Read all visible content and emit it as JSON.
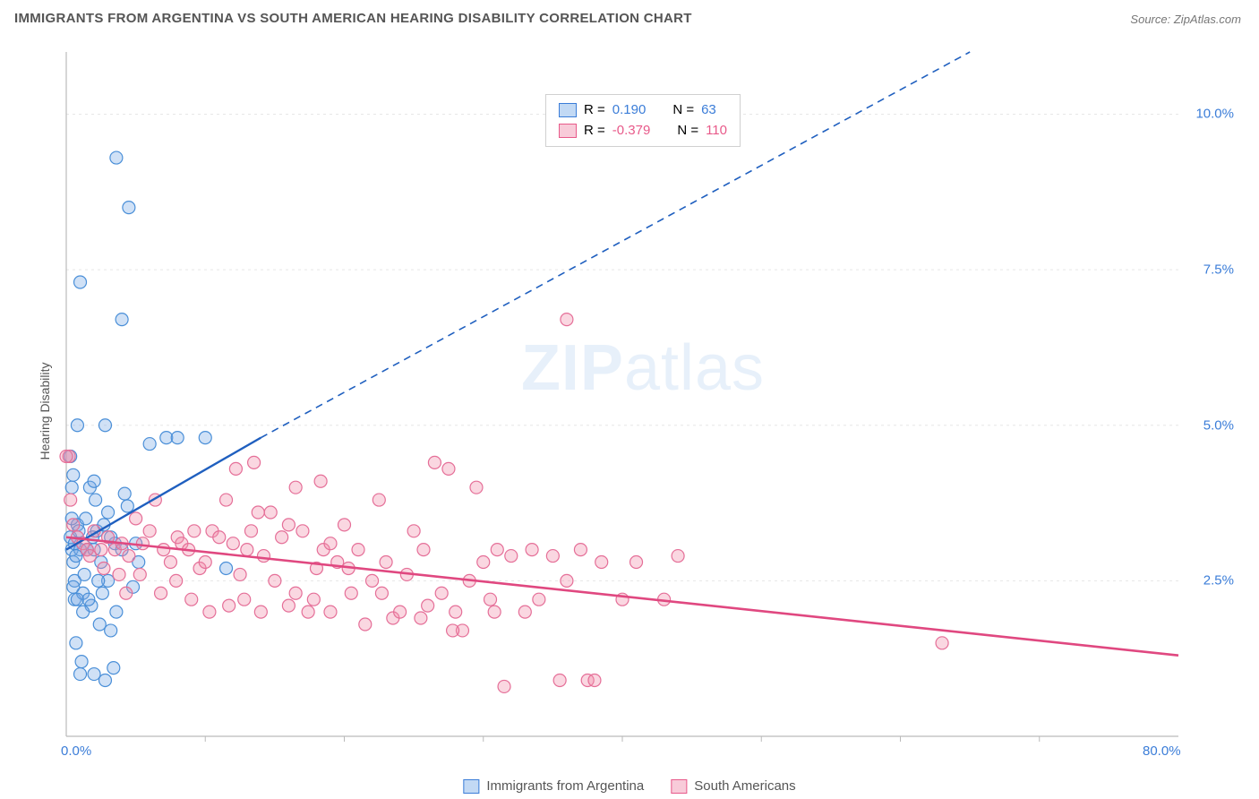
{
  "title": "IMMIGRANTS FROM ARGENTINA VS SOUTH AMERICAN HEARING DISABILITY CORRELATION CHART",
  "source_label": "Source:",
  "source_name": "ZipAtlas.com",
  "watermark_bold": "ZIP",
  "watermark_rest": "atlas",
  "chart": {
    "type": "scatter",
    "ylabel": "Hearing Disability",
    "xlim": [
      0,
      80
    ],
    "ylim": [
      0,
      11
    ],
    "yticks": [
      {
        "v": 2.5,
        "label": "2.5%"
      },
      {
        "v": 5.0,
        "label": "5.0%"
      },
      {
        "v": 7.5,
        "label": "7.5%"
      },
      {
        "v": 10.0,
        "label": "10.0%"
      }
    ],
    "xticks": [
      {
        "v": 0,
        "label": "0.0%"
      },
      {
        "v": 80,
        "label": "80.0%"
      }
    ],
    "xminor": [
      10,
      20,
      30,
      40,
      50,
      60,
      70
    ],
    "background_color": "#ffffff",
    "grid_color": "#e6e6e6",
    "axis_color": "#bababa",
    "marker_radius": 7,
    "marker_stroke_width": 1.2,
    "series": [
      {
        "name": "Immigrants from Argentina",
        "color_fill": "rgba(120,170,230,0.35)",
        "color_stroke": "#4a8fd8",
        "R": "0.190",
        "N": "63",
        "trend": {
          "x1": 0,
          "y1": 3.0,
          "x2_solid": 14,
          "y2_solid": 4.8,
          "x2_dash": 65,
          "y2_dash": 11.0,
          "color": "#1f5fbf",
          "width": 2.4
        },
        "points": [
          [
            0.3,
            3.2
          ],
          [
            0.4,
            3.0
          ],
          [
            0.6,
            3.1
          ],
          [
            0.5,
            2.8
          ],
          [
            0.8,
            3.4
          ],
          [
            0.4,
            3.5
          ],
          [
            0.6,
            2.5
          ],
          [
            1.0,
            3.0
          ],
          [
            0.9,
            3.3
          ],
          [
            0.7,
            2.9
          ],
          [
            0.3,
            4.5
          ],
          [
            0.5,
            4.2
          ],
          [
            0.6,
            2.2
          ],
          [
            1.2,
            2.3
          ],
          [
            1.5,
            3.0
          ],
          [
            1.3,
            2.6
          ],
          [
            1.8,
            2.1
          ],
          [
            1.4,
            3.5
          ],
          [
            2.0,
            3.0
          ],
          [
            2.2,
            3.3
          ],
          [
            2.5,
            2.8
          ],
          [
            2.6,
            2.3
          ],
          [
            3.0,
            2.5
          ],
          [
            3.5,
            3.1
          ],
          [
            3.2,
            3.2
          ],
          [
            4.0,
            3.0
          ],
          [
            3.6,
            2.0
          ],
          [
            1.7,
            4.0
          ],
          [
            2.0,
            4.1
          ],
          [
            0.8,
            5.0
          ],
          [
            2.8,
            5.0
          ],
          [
            4.2,
            3.9
          ],
          [
            5.0,
            3.1
          ],
          [
            5.2,
            2.8
          ],
          [
            6.0,
            4.7
          ],
          [
            7.2,
            4.8
          ],
          [
            8.0,
            4.8
          ],
          [
            10.0,
            4.8
          ],
          [
            11.5,
            2.7
          ],
          [
            1.0,
            7.3
          ],
          [
            4.0,
            6.7
          ],
          [
            4.5,
            8.5
          ],
          [
            3.6,
            9.3
          ],
          [
            1.2,
            2.0
          ],
          [
            2.4,
            1.8
          ],
          [
            3.2,
            1.7
          ],
          [
            0.7,
            1.5
          ],
          [
            1.1,
            1.2
          ],
          [
            3.4,
            1.1
          ],
          [
            1.0,
            1.0
          ],
          [
            2.0,
            1.0
          ],
          [
            2.8,
            0.9
          ],
          [
            0.5,
            2.4
          ],
          [
            0.8,
            2.2
          ],
          [
            1.6,
            2.2
          ],
          [
            2.3,
            2.5
          ],
          [
            4.8,
            2.4
          ],
          [
            3.0,
            3.6
          ],
          [
            4.4,
            3.7
          ],
          [
            2.1,
            3.8
          ],
          [
            0.4,
            4.0
          ],
          [
            1.9,
            3.2
          ],
          [
            2.7,
            3.4
          ]
        ]
      },
      {
        "name": "South Americans",
        "color_fill": "rgba(240,140,170,0.35)",
        "color_stroke": "#e56f98",
        "R": "-0.379",
        "N": "110",
        "trend": {
          "x1": 0,
          "y1": 3.2,
          "x2_solid": 80,
          "y2_solid": 1.3,
          "color": "#e04880",
          "width": 2.6
        },
        "points": [
          [
            0.2,
            4.5
          ],
          [
            0.0,
            4.5
          ],
          [
            0.3,
            3.8
          ],
          [
            0.5,
            3.4
          ],
          [
            0.8,
            3.2
          ],
          [
            1.2,
            3.1
          ],
          [
            1.5,
            3.0
          ],
          [
            2.0,
            3.3
          ],
          [
            2.5,
            3.0
          ],
          [
            3.0,
            3.2
          ],
          [
            3.5,
            3.0
          ],
          [
            4.0,
            3.1
          ],
          [
            4.5,
            2.9
          ],
          [
            5.0,
            3.5
          ],
          [
            5.5,
            3.1
          ],
          [
            6.0,
            3.3
          ],
          [
            6.4,
            3.8
          ],
          [
            7.0,
            3.0
          ],
          [
            7.5,
            2.8
          ],
          [
            8.0,
            3.2
          ],
          [
            8.3,
            3.1
          ],
          [
            8.8,
            3.0
          ],
          [
            9.2,
            3.3
          ],
          [
            9.6,
            2.7
          ],
          [
            10.0,
            2.8
          ],
          [
            10.5,
            3.3
          ],
          [
            11.0,
            3.2
          ],
          [
            11.5,
            3.8
          ],
          [
            12.0,
            3.1
          ],
          [
            12.5,
            2.6
          ],
          [
            13.0,
            3.0
          ],
          [
            13.3,
            3.3
          ],
          [
            13.8,
            3.6
          ],
          [
            14.2,
            2.9
          ],
          [
            14.7,
            3.6
          ],
          [
            15.0,
            2.5
          ],
          [
            15.5,
            3.2
          ],
          [
            16.0,
            3.4
          ],
          [
            16.5,
            2.3
          ],
          [
            17.0,
            3.3
          ],
          [
            17.4,
            2.0
          ],
          [
            18.0,
            2.7
          ],
          [
            18.5,
            3.0
          ],
          [
            19.0,
            2.0
          ],
          [
            19.5,
            2.8
          ],
          [
            20.0,
            3.4
          ],
          [
            20.5,
            2.3
          ],
          [
            21.0,
            3.0
          ],
          [
            21.5,
            1.8
          ],
          [
            22.0,
            2.5
          ],
          [
            22.5,
            3.8
          ],
          [
            23.0,
            2.8
          ],
          [
            23.5,
            1.9
          ],
          [
            24.0,
            2.0
          ],
          [
            24.5,
            2.6
          ],
          [
            25.0,
            3.3
          ],
          [
            25.5,
            1.9
          ],
          [
            26.0,
            2.1
          ],
          [
            26.5,
            4.4
          ],
          [
            27.0,
            2.3
          ],
          [
            27.5,
            4.3
          ],
          [
            28.0,
            2.0
          ],
          [
            28.5,
            1.7
          ],
          [
            29.0,
            2.5
          ],
          [
            29.5,
            4.0
          ],
          [
            30.0,
            2.8
          ],
          [
            30.5,
            2.2
          ],
          [
            31.0,
            3.0
          ],
          [
            32.0,
            2.9
          ],
          [
            33.0,
            2.0
          ],
          [
            33.5,
            3.0
          ],
          [
            34.0,
            2.2
          ],
          [
            35.0,
            2.9
          ],
          [
            35.5,
            0.9
          ],
          [
            36.0,
            2.5
          ],
          [
            36.0,
            6.7
          ],
          [
            37.0,
            3.0
          ],
          [
            37.5,
            0.9
          ],
          [
            38.0,
            0.9
          ],
          [
            38.5,
            2.8
          ],
          [
            40.0,
            2.2
          ],
          [
            41.0,
            2.8
          ],
          [
            43.0,
            2.2
          ],
          [
            44.0,
            2.9
          ],
          [
            63.0,
            1.5
          ],
          [
            16.0,
            2.1
          ],
          [
            17.8,
            2.2
          ],
          [
            12.8,
            2.2
          ],
          [
            14.0,
            2.0
          ],
          [
            9.0,
            2.2
          ],
          [
            10.3,
            2.0
          ],
          [
            11.7,
            2.1
          ],
          [
            6.8,
            2.3
          ],
          [
            5.3,
            2.6
          ],
          [
            7.9,
            2.5
          ],
          [
            4.3,
            2.3
          ],
          [
            3.8,
            2.6
          ],
          [
            2.7,
            2.7
          ],
          [
            1.7,
            2.9
          ],
          [
            19.0,
            3.1
          ],
          [
            20.3,
            2.7
          ],
          [
            22.7,
            2.3
          ],
          [
            25.7,
            3.0
          ],
          [
            30.8,
            2.0
          ],
          [
            27.8,
            1.7
          ],
          [
            31.5,
            0.8
          ],
          [
            16.5,
            4.0
          ],
          [
            18.3,
            4.1
          ],
          [
            13.5,
            4.4
          ],
          [
            12.2,
            4.3
          ]
        ]
      }
    ]
  },
  "legend_top": {
    "r_label": "R = ",
    "n_label": "N = "
  },
  "legend_bottom": {
    "series1": "Immigrants from Argentina",
    "series2": "South Americans"
  }
}
